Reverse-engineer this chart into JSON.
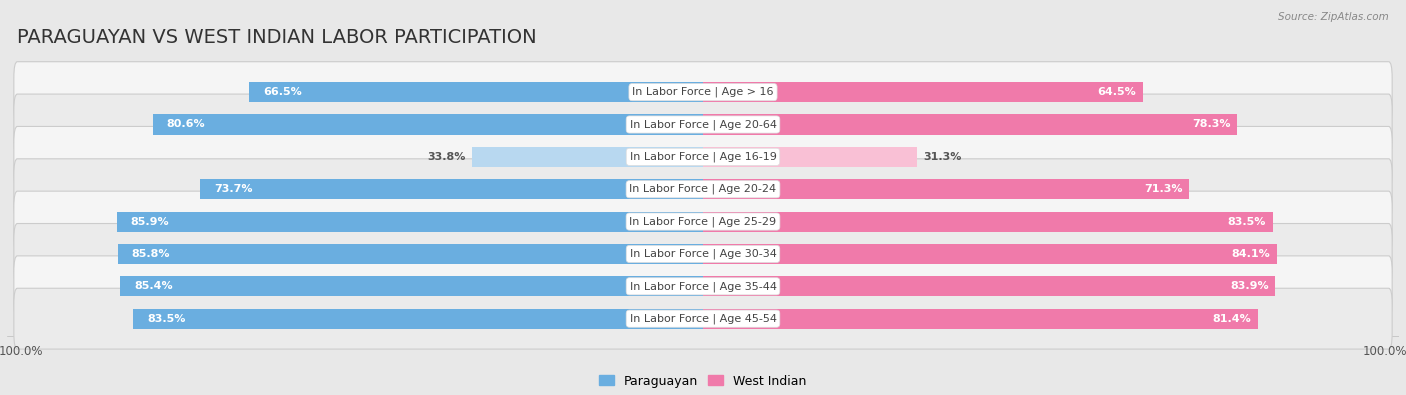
{
  "title": "PARAGUAYAN VS WEST INDIAN LABOR PARTICIPATION",
  "source": "Source: ZipAtlas.com",
  "categories": [
    "In Labor Force | Age > 16",
    "In Labor Force | Age 20-64",
    "In Labor Force | Age 16-19",
    "In Labor Force | Age 20-24",
    "In Labor Force | Age 25-29",
    "In Labor Force | Age 30-34",
    "In Labor Force | Age 35-44",
    "In Labor Force | Age 45-54"
  ],
  "paraguayan": [
    66.5,
    80.6,
    33.8,
    73.7,
    85.9,
    85.8,
    85.4,
    83.5
  ],
  "west_indian": [
    64.5,
    78.3,
    31.3,
    71.3,
    83.5,
    84.1,
    83.9,
    81.4
  ],
  "paraguayan_color": "#6aaee0",
  "west_indian_color": "#f07aaa",
  "paraguayan_color_light": "#b8d8f0",
  "west_indian_color_light": "#f9c0d5",
  "bg_color": "#e8e8e8",
  "row_bg_odd": "#f5f5f5",
  "row_bg_even": "#ebebeb",
  "bar_height": 0.62,
  "title_fontsize": 14,
  "label_fontsize": 8,
  "value_fontsize": 8,
  "legend_fontsize": 9,
  "axis_label_fontsize": 8.5,
  "max_val": 100
}
